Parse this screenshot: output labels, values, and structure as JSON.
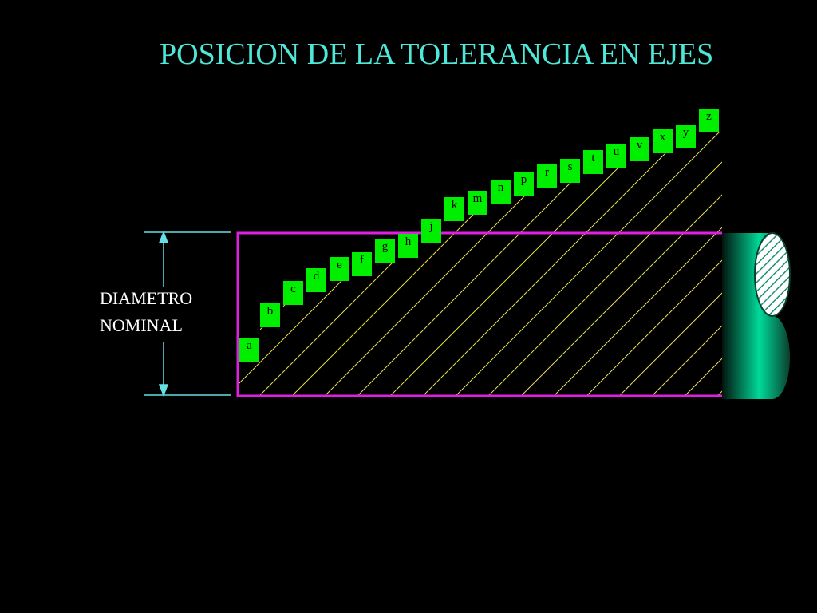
{
  "title": "POSICION DE LA TOLERANCIA EN EJES",
  "dimension_label": [
    "DIAMETRO",
    "NOMINAL"
  ],
  "deviations": [
    "a",
    "b",
    "c",
    "d",
    "e",
    "f",
    "g",
    "h",
    "j",
    "k",
    "m",
    "n",
    "p",
    "r",
    "s",
    "t",
    "u",
    "v",
    "x",
    "y",
    "z"
  ]
}
